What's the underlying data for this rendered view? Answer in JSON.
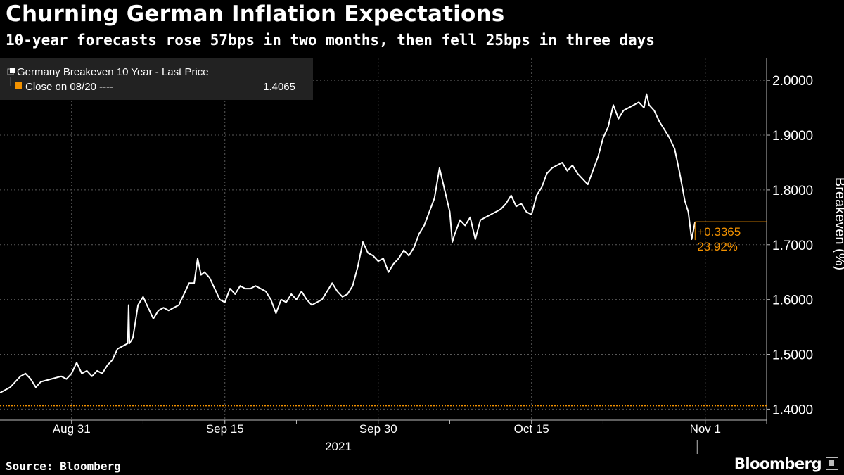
{
  "header": {
    "title": "Churning German Inflation Expectations",
    "subtitle": "10-year forecasts rose 57bps in two months, then fell 25bps in three days"
  },
  "footer": {
    "source": "Source: Bloomberg",
    "logo": "Bloomberg",
    "logo_icon": "bloomberg-square-icon"
  },
  "colors": {
    "background": "#000000",
    "line": "#ffffff",
    "reference": "#f39200",
    "grid": "#5a5a5a"
  },
  "chart_data": {
    "type": "line",
    "ylabel": "Breakeven (%)",
    "ylim": [
      1.38,
      2.04
    ],
    "xlim": [
      "2021-08-24",
      "2021-11-07"
    ],
    "year_label": "2021",
    "y_ticks": [
      "1.4000",
      "1.5000",
      "1.6000",
      "1.7000",
      "1.8000",
      "1.9000",
      "2.0000"
    ],
    "y_tick_values": [
      1.4,
      1.5,
      1.6,
      1.7,
      1.8,
      1.9,
      2.0
    ],
    "x_ticks": [
      {
        "date": "2021-08-31",
        "label": "Aug 31"
      },
      {
        "date": "2021-09-15",
        "label": "Sep 15"
      },
      {
        "date": "2021-09-30",
        "label": "Sep 30"
      },
      {
        "date": "2021-10-15",
        "label": "Oct 15"
      },
      {
        "date": "2021-11-01",
        "label": "Nov 1"
      }
    ],
    "x_minor_ticks": [
      "2021-09-07",
      "2021-09-22",
      "2021-10-07",
      "2021-10-22",
      "2021-11-07"
    ],
    "grid": true,
    "legend": {
      "placement": "top-left",
      "entries": [
        {
          "label": "Germany Breakeven 10 Year - Last Price",
          "value": ""
        },
        {
          "label": "Close on 08/20 ----",
          "value": "1.4065"
        }
      ]
    },
    "reference": {
      "value": 1.4065
    },
    "annotation": {
      "change": "+0.3365",
      "percent": "23.92%"
    },
    "series": [
      {
        "name": "Germany Breakeven 10 Year - Last Price",
        "points": [
          [
            "2021-08-24",
            1.43
          ],
          [
            "2021-08-24 12:00",
            1.435
          ],
          [
            "2021-08-25",
            1.44
          ],
          [
            "2021-08-25 12:00",
            1.45
          ],
          [
            "2021-08-26",
            1.46
          ],
          [
            "2021-08-26 12:00",
            1.465
          ],
          [
            "2021-08-27",
            1.455
          ],
          [
            "2021-08-27 12:00",
            1.44
          ],
          [
            "2021-08-28",
            1.45
          ],
          [
            "2021-08-29",
            1.455
          ],
          [
            "2021-08-30",
            1.46
          ],
          [
            "2021-08-30 12:00",
            1.455
          ],
          [
            "2021-08-31",
            1.465
          ],
          [
            "2021-08-31 12:00",
            1.485
          ],
          [
            "2021-09-01",
            1.465
          ],
          [
            "2021-09-01 12:00",
            1.47
          ],
          [
            "2021-09-02",
            1.46
          ],
          [
            "2021-09-02 12:00",
            1.47
          ],
          [
            "2021-09-03",
            1.465
          ],
          [
            "2021-09-03 12:00",
            1.48
          ],
          [
            "2021-09-04",
            1.49
          ],
          [
            "2021-09-04 12:00",
            1.51
          ],
          [
            "2021-09-05",
            1.515
          ],
          [
            "2021-09-05 12:00",
            1.52
          ],
          [
            "2021-09-05 14:00",
            1.59
          ],
          [
            "2021-09-05 16:00",
            1.52
          ],
          [
            "2021-09-06",
            1.53
          ],
          [
            "2021-09-06 06:00",
            1.56
          ],
          [
            "2021-09-06 12:00",
            1.59
          ],
          [
            "2021-09-07",
            1.605
          ],
          [
            "2021-09-07 12:00",
            1.585
          ],
          [
            "2021-09-08",
            1.565
          ],
          [
            "2021-09-08 12:00",
            1.58
          ],
          [
            "2021-09-09",
            1.585
          ],
          [
            "2021-09-09 12:00",
            1.58
          ],
          [
            "2021-09-10",
            1.585
          ],
          [
            "2021-09-10 12:00",
            1.59
          ],
          [
            "2021-09-11",
            1.61
          ],
          [
            "2021-09-11 12:00",
            1.63
          ],
          [
            "2021-09-12",
            1.63
          ],
          [
            "2021-09-12 08:00",
            1.675
          ],
          [
            "2021-09-12 16:00",
            1.645
          ],
          [
            "2021-09-13",
            1.65
          ],
          [
            "2021-09-13 12:00",
            1.64
          ],
          [
            "2021-09-14",
            1.62
          ],
          [
            "2021-09-14 12:00",
            1.6
          ],
          [
            "2021-09-15",
            1.595
          ],
          [
            "2021-09-15 12:00",
            1.62
          ],
          [
            "2021-09-16",
            1.61
          ],
          [
            "2021-09-16 12:00",
            1.625
          ],
          [
            "2021-09-17",
            1.62
          ],
          [
            "2021-09-17 12:00",
            1.62
          ],
          [
            "2021-09-18",
            1.625
          ],
          [
            "2021-09-18 12:00",
            1.62
          ],
          [
            "2021-09-19",
            1.615
          ],
          [
            "2021-09-19 12:00",
            1.6
          ],
          [
            "2021-09-20",
            1.575
          ],
          [
            "2021-09-20 12:00",
            1.6
          ],
          [
            "2021-09-21",
            1.595
          ],
          [
            "2021-09-21 12:00",
            1.61
          ],
          [
            "2021-09-22",
            1.6
          ],
          [
            "2021-09-22 12:00",
            1.615
          ],
          [
            "2021-09-23",
            1.6
          ],
          [
            "2021-09-23 12:00",
            1.59
          ],
          [
            "2021-09-24",
            1.595
          ],
          [
            "2021-09-24 12:00",
            1.6
          ],
          [
            "2021-09-25",
            1.615
          ],
          [
            "2021-09-25 12:00",
            1.63
          ],
          [
            "2021-09-26",
            1.615
          ],
          [
            "2021-09-26 12:00",
            1.605
          ],
          [
            "2021-09-27",
            1.61
          ],
          [
            "2021-09-27 12:00",
            1.625
          ],
          [
            "2021-09-28",
            1.66
          ],
          [
            "2021-09-28 12:00",
            1.705
          ],
          [
            "2021-09-29",
            1.685
          ],
          [
            "2021-09-29 12:00",
            1.68
          ],
          [
            "2021-09-30",
            1.67
          ],
          [
            "2021-09-30 12:00",
            1.675
          ],
          [
            "2021-10-01",
            1.65
          ],
          [
            "2021-10-01 12:00",
            1.665
          ],
          [
            "2021-10-02",
            1.675
          ],
          [
            "2021-10-02 12:00",
            1.69
          ],
          [
            "2021-10-03",
            1.68
          ],
          [
            "2021-10-03 12:00",
            1.695
          ],
          [
            "2021-10-04",
            1.72
          ],
          [
            "2021-10-04 12:00",
            1.735
          ],
          [
            "2021-10-05",
            1.76
          ],
          [
            "2021-10-05 12:00",
            1.785
          ],
          [
            "2021-10-06",
            1.84
          ],
          [
            "2021-10-06 12:00",
            1.8
          ],
          [
            "2021-10-07",
            1.76
          ],
          [
            "2021-10-07 06:00",
            1.705
          ],
          [
            "2021-10-07 12:00",
            1.72
          ],
          [
            "2021-10-08",
            1.745
          ],
          [
            "2021-10-08 12:00",
            1.735
          ],
          [
            "2021-10-09",
            1.75
          ],
          [
            "2021-10-09 12:00",
            1.71
          ],
          [
            "2021-10-10",
            1.745
          ],
          [
            "2021-10-10 12:00",
            1.75
          ],
          [
            "2021-10-11",
            1.755
          ],
          [
            "2021-10-11 12:00",
            1.76
          ],
          [
            "2021-10-12",
            1.765
          ],
          [
            "2021-10-12 12:00",
            1.775
          ],
          [
            "2021-10-13",
            1.79
          ],
          [
            "2021-10-13 12:00",
            1.77
          ],
          [
            "2021-10-14",
            1.775
          ],
          [
            "2021-10-14 12:00",
            1.76
          ],
          [
            "2021-10-15",
            1.755
          ],
          [
            "2021-10-15 12:00",
            1.79
          ],
          [
            "2021-10-16",
            1.805
          ],
          [
            "2021-10-16 12:00",
            1.83
          ],
          [
            "2021-10-17",
            1.84
          ],
          [
            "2021-10-17 12:00",
            1.845
          ],
          [
            "2021-10-18",
            1.85
          ],
          [
            "2021-10-18 12:00",
            1.835
          ],
          [
            "2021-10-19",
            1.845
          ],
          [
            "2021-10-19 12:00",
            1.83
          ],
          [
            "2021-10-20",
            1.82
          ],
          [
            "2021-10-20 12:00",
            1.81
          ],
          [
            "2021-10-21",
            1.835
          ],
          [
            "2021-10-21 12:00",
            1.86
          ],
          [
            "2021-10-22",
            1.895
          ],
          [
            "2021-10-22 12:00",
            1.915
          ],
          [
            "2021-10-23",
            1.955
          ],
          [
            "2021-10-23 12:00",
            1.93
          ],
          [
            "2021-10-24",
            1.945
          ],
          [
            "2021-10-24 12:00",
            1.95
          ],
          [
            "2021-10-25",
            1.955
          ],
          [
            "2021-10-25 12:00",
            1.96
          ],
          [
            "2021-10-26",
            1.95
          ],
          [
            "2021-10-26 06:00",
            1.975
          ],
          [
            "2021-10-26 12:00",
            1.955
          ],
          [
            "2021-10-27",
            1.945
          ],
          [
            "2021-10-27 12:00",
            1.925
          ],
          [
            "2021-10-28",
            1.91
          ],
          [
            "2021-10-28 12:00",
            1.895
          ],
          [
            "2021-10-29",
            1.875
          ],
          [
            "2021-10-29 12:00",
            1.83
          ],
          [
            "2021-10-30",
            1.78
          ],
          [
            "2021-10-30 08:00",
            1.76
          ],
          [
            "2021-10-30 16:00",
            1.71
          ],
          [
            "2021-10-31",
            1.742
          ]
        ]
      }
    ]
  }
}
